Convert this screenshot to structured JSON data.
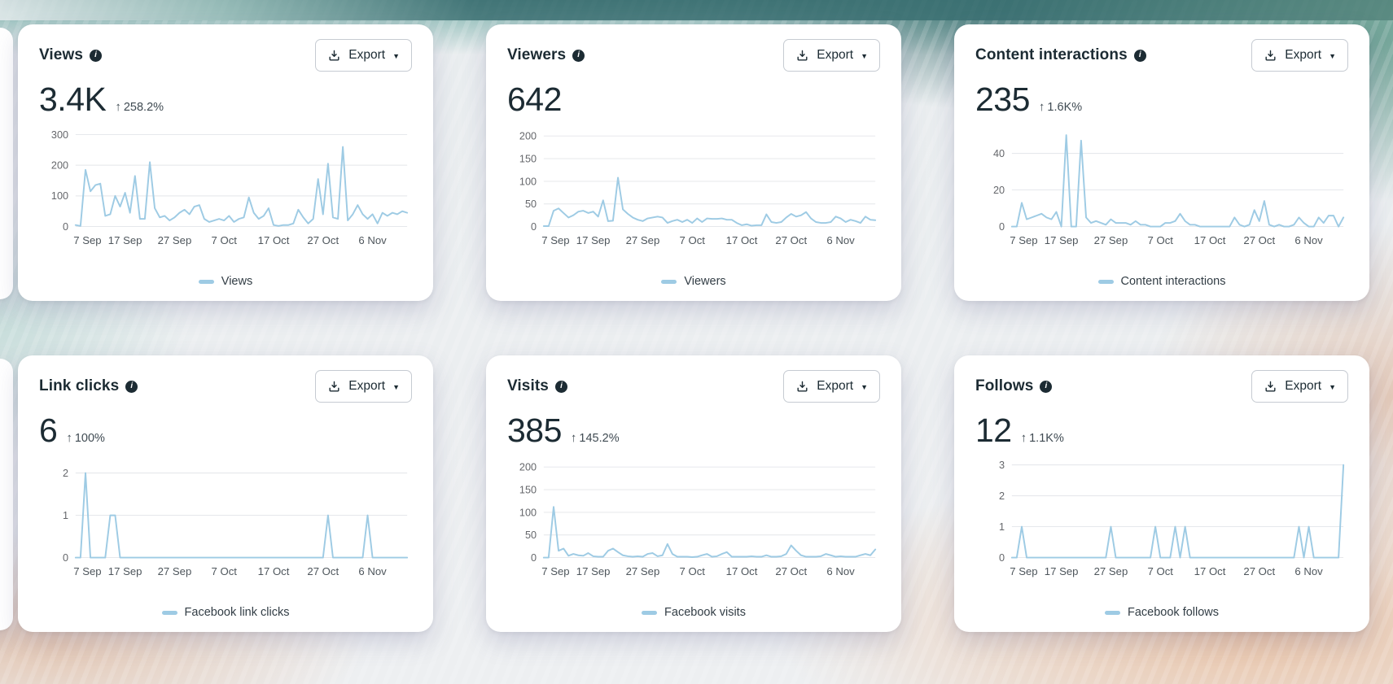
{
  "ui": {
    "export_label": "Export",
    "change_arrow": "↑",
    "line_color": "#9ecbe4",
    "grid_color": "#e3e5e9",
    "ytick_color": "#65676b",
    "xtick_color": "#4e565c"
  },
  "cards": [
    {
      "title": "Views",
      "metric": "3.4K",
      "change": "258.2%",
      "legend": "Views"
    },
    {
      "title": "Viewers",
      "metric": "642",
      "change": "",
      "legend": "Viewers"
    },
    {
      "title": "Content interactions",
      "metric": "235",
      "change": "1.6K%",
      "legend": "Content interactions"
    },
    {
      "title": "Link clicks",
      "metric": "6",
      "change": "100%",
      "legend": "Facebook link clicks"
    },
    {
      "title": "Visits",
      "metric": "385",
      "change": "145.2%",
      "legend": "Facebook visits"
    },
    {
      "title": "Follows",
      "metric": "12",
      "change": "1.1K%",
      "legend": "Facebook follows"
    }
  ],
  "chart_data": [
    {
      "type": "line",
      "title": "Views",
      "xlabel": "",
      "ylabel": "",
      "categories": [
        "7 Sep",
        "17 Sep",
        "27 Sep",
        "7 Oct",
        "17 Oct",
        "27 Oct",
        "6 Nov"
      ],
      "tick_idx": [
        0,
        10,
        20,
        30,
        40,
        50,
        60
      ],
      "yticks": [
        0,
        100,
        200,
        300
      ],
      "ylim": [
        0,
        310
      ],
      "legend": "Views",
      "grid": true,
      "legend_position": "bottom",
      "values": [
        5,
        2,
        185,
        115,
        135,
        140,
        35,
        40,
        100,
        65,
        110,
        45,
        165,
        25,
        25,
        210,
        60,
        30,
        35,
        20,
        30,
        45,
        55,
        40,
        65,
        70,
        25,
        15,
        20,
        25,
        20,
        35,
        15,
        25,
        30,
        95,
        45,
        25,
        35,
        60,
        5,
        2,
        5,
        5,
        10,
        55,
        30,
        10,
        25,
        155,
        40,
        205,
        30,
        25,
        260,
        20,
        40,
        70,
        40,
        25,
        40,
        10,
        45,
        35,
        45,
        40,
        50,
        45
      ]
    },
    {
      "type": "line",
      "title": "Viewers",
      "xlabel": "",
      "ylabel": "",
      "categories": [
        "7 Sep",
        "17 Sep",
        "27 Sep",
        "7 Oct",
        "17 Oct",
        "27 Oct",
        "6 Nov"
      ],
      "tick_idx": [
        0,
        10,
        20,
        30,
        40,
        50,
        60
      ],
      "yticks": [
        0,
        50,
        100,
        150,
        200
      ],
      "ylim": [
        0,
        210
      ],
      "legend": "Viewers",
      "grid": true,
      "legend_position": "bottom",
      "values": [
        1,
        1,
        35,
        40,
        30,
        20,
        25,
        33,
        35,
        30,
        33,
        22,
        58,
        12,
        13,
        108,
        38,
        28,
        20,
        15,
        12,
        18,
        20,
        22,
        20,
        8,
        12,
        15,
        10,
        15,
        8,
        18,
        10,
        18,
        17,
        17,
        18,
        15,
        15,
        8,
        3,
        5,
        2,
        3,
        3,
        27,
        10,
        8,
        10,
        20,
        28,
        22,
        25,
        32,
        18,
        10,
        8,
        8,
        10,
        22,
        18,
        10,
        15,
        12,
        8,
        22,
        15,
        14
      ]
    },
    {
      "type": "line",
      "title": "Content interactions",
      "xlabel": "",
      "ylabel": "",
      "categories": [
        "7 Sep",
        "17 Sep",
        "27 Sep",
        "7 Oct",
        "17 Oct",
        "27 Oct",
        "6 Nov"
      ],
      "tick_idx": [
        0,
        10,
        20,
        30,
        40,
        50,
        60
      ],
      "yticks": [
        0,
        20,
        40
      ],
      "ylim": [
        0,
        52
      ],
      "legend": "Content interactions",
      "grid": true,
      "legend_position": "bottom",
      "values": [
        0,
        0,
        13,
        4,
        5,
        6,
        7,
        5,
        4,
        8,
        0,
        50,
        0,
        0,
        47,
        5,
        2,
        3,
        2,
        1,
        4,
        2,
        2,
        2,
        1,
        3,
        1,
        1,
        0,
        0,
        0,
        2,
        2,
        3,
        7,
        3,
        1,
        1,
        0,
        0,
        0,
        0,
        0,
        0,
        0,
        5,
        1,
        0,
        1,
        9,
        3,
        14,
        1,
        0,
        1,
        0,
        0,
        1,
        5,
        2,
        0,
        0,
        5,
        2,
        6,
        6,
        0,
        5
      ]
    },
    {
      "type": "line",
      "title": "Link clicks",
      "xlabel": "",
      "ylabel": "",
      "categories": [
        "7 Sep",
        "17 Sep",
        "27 Sep",
        "7 Oct",
        "17 Oct",
        "27 Oct",
        "6 Nov"
      ],
      "tick_idx": [
        0,
        10,
        20,
        30,
        40,
        50,
        60
      ],
      "yticks": [
        0,
        1,
        2
      ],
      "ylim": [
        0,
        2.25
      ],
      "legend": "Facebook link clicks",
      "grid": true,
      "legend_position": "bottom",
      "values": [
        0,
        0,
        2,
        0,
        0,
        0,
        0,
        1,
        1,
        0,
        0,
        0,
        0,
        0,
        0,
        0,
        0,
        0,
        0,
        0,
        0,
        0,
        0,
        0,
        0,
        0,
        0,
        0,
        0,
        0,
        0,
        0,
        0,
        0,
        0,
        0,
        0,
        0,
        0,
        0,
        0,
        0,
        0,
        0,
        0,
        0,
        0,
        0,
        0,
        0,
        0,
        1,
        0,
        0,
        0,
        0,
        0,
        0,
        0,
        1,
        0,
        0,
        0,
        0,
        0,
        0,
        0,
        0
      ]
    },
    {
      "type": "line",
      "title": "Visits",
      "xlabel": "",
      "ylabel": "",
      "categories": [
        "7 Sep",
        "17 Sep",
        "27 Sep",
        "7 Oct",
        "17 Oct",
        "27 Oct",
        "6 Nov"
      ],
      "tick_idx": [
        0,
        10,
        20,
        30,
        40,
        50,
        60
      ],
      "yticks": [
        0,
        50,
        100,
        150,
        200
      ],
      "ylim": [
        0,
        210
      ],
      "legend": "Facebook visits",
      "grid": true,
      "legend_position": "bottom",
      "values": [
        0,
        0,
        112,
        15,
        20,
        4,
        8,
        5,
        4,
        10,
        3,
        2,
        2,
        15,
        20,
        12,
        5,
        3,
        2,
        3,
        2,
        8,
        10,
        3,
        5,
        30,
        8,
        2,
        2,
        2,
        1,
        2,
        5,
        8,
        2,
        3,
        8,
        12,
        2,
        2,
        2,
        2,
        3,
        2,
        2,
        5,
        2,
        2,
        3,
        8,
        27,
        15,
        5,
        2,
        2,
        2,
        3,
        8,
        5,
        2,
        3,
        2,
        2,
        2,
        5,
        8,
        5,
        18
      ]
    },
    {
      "type": "line",
      "title": "Follows",
      "xlabel": "",
      "ylabel": "",
      "categories": [
        "7 Sep",
        "17 Sep",
        "27 Sep",
        "7 Oct",
        "17 Oct",
        "27 Oct",
        "6 Nov"
      ],
      "tick_idx": [
        0,
        10,
        20,
        30,
        40,
        50,
        60
      ],
      "yticks": [
        0,
        1,
        2,
        3
      ],
      "ylim": [
        0,
        3.08
      ],
      "legend": "Facebook follows",
      "grid": true,
      "legend_position": "bottom",
      "values": [
        0,
        0,
        1,
        0,
        0,
        0,
        0,
        0,
        0,
        0,
        0,
        0,
        0,
        0,
        0,
        0,
        0,
        0,
        0,
        0,
        1,
        0,
        0,
        0,
        0,
        0,
        0,
        0,
        0,
        1,
        0,
        0,
        0,
        1,
        0,
        1,
        0,
        0,
        0,
        0,
        0,
        0,
        0,
        0,
        0,
        0,
        0,
        0,
        0,
        0,
        0,
        0,
        0,
        0,
        0,
        0,
        0,
        0,
        1,
        0,
        1,
        0,
        0,
        0,
        0,
        0,
        0,
        3
      ]
    }
  ]
}
